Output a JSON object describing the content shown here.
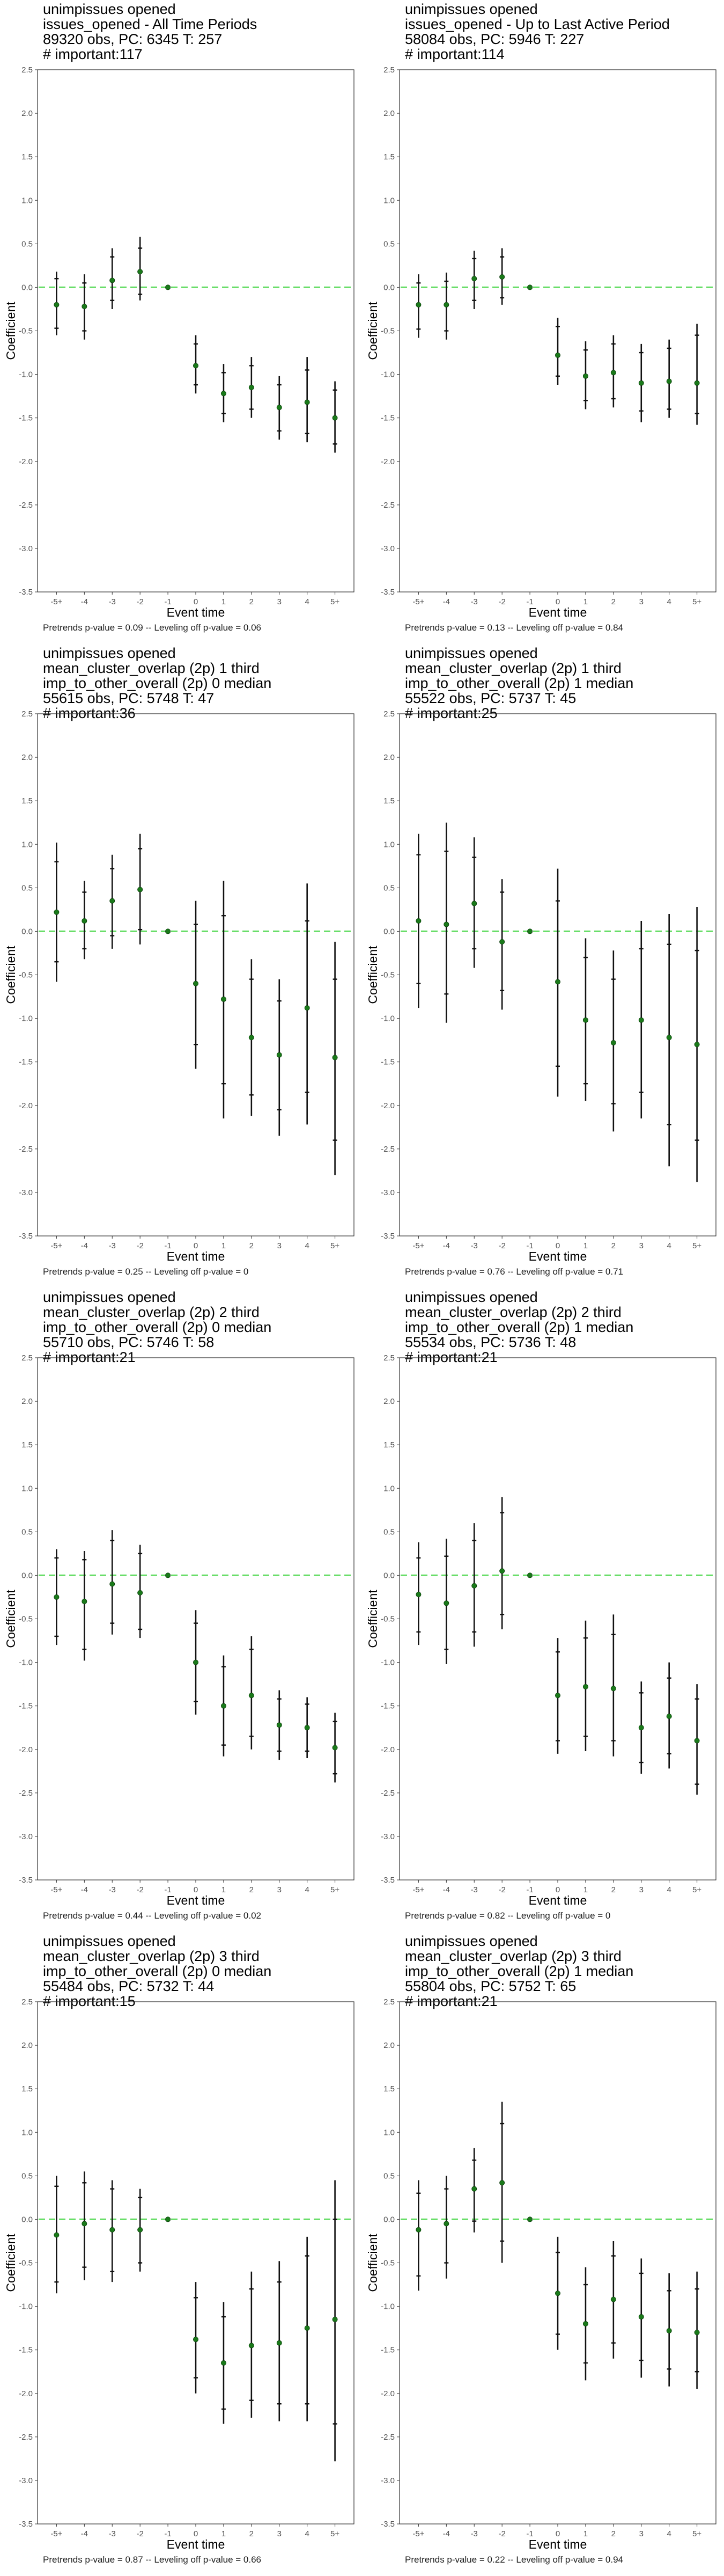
{
  "x_ticks": [
    "-5+",
    "-4",
    "-3",
    "-2",
    "-1",
    "0",
    "1",
    "2",
    "3",
    "4",
    "5+"
  ],
  "y_ticks": [
    "2.5",
    "2.0",
    "1.5",
    "1.0",
    "0.5",
    "0.0",
    "-0.5",
    "-1.0",
    "-1.5",
    "-2.0",
    "-2.5",
    "-3.0",
    "-3.5"
  ],
  "x_label": "Event time",
  "y_label": "Coefficient",
  "colors": {
    "point": "#1a7a1a",
    "reference_line": "#66dd66",
    "error_bar": "#111111",
    "panel_border": "#333333"
  },
  "panels": [
    {
      "titles": [
        " unimpissues opened",
        "issues_opened - All Time Periods",
        "89320 obs, PC: 6345 T: 257",
        "# important:117"
      ],
      "footnote": "Pretrends p-value = 0.09 -- Leveling off p-value = 0.06",
      "chart_data": {
        "type": "scatter",
        "x": [
          "-5+",
          "-4",
          "-3",
          "-2",
          "-1",
          "0",
          "1",
          "2",
          "3",
          "4",
          "5+"
        ],
        "y": [
          -0.2,
          -0.22,
          0.08,
          0.18,
          0.0,
          -0.9,
          -1.22,
          -1.15,
          -1.38,
          -1.32,
          -1.5
        ],
        "ci95": [
          [
            -0.55,
            0.18
          ],
          [
            -0.6,
            0.15
          ],
          [
            -0.25,
            0.45
          ],
          [
            -0.15,
            0.58
          ],
          null,
          [
            -1.22,
            -0.55
          ],
          [
            -1.55,
            -0.88
          ],
          [
            -1.5,
            -0.8
          ],
          [
            -1.75,
            -1.02
          ],
          [
            -1.78,
            -0.8
          ],
          [
            -1.9,
            -1.08
          ]
        ],
        "ci90": [
          [
            -0.47,
            0.1
          ],
          [
            -0.5,
            0.05
          ],
          [
            -0.15,
            0.35
          ],
          [
            -0.08,
            0.45
          ],
          null,
          [
            -1.12,
            -0.65
          ],
          [
            -1.45,
            -0.98
          ],
          [
            -1.4,
            -0.9
          ],
          [
            -1.65,
            -1.12
          ],
          [
            -1.68,
            -0.95
          ],
          [
            -1.8,
            -1.18
          ]
        ],
        "ylim": [
          -3.5,
          2.5
        ],
        "reference_y": 0
      }
    },
    {
      "titles": [
        " unimpissues opened",
        "issues_opened - Up to Last Active Period",
        "58084 obs, PC: 5946 T: 227",
        "# important:114"
      ],
      "footnote": "Pretrends p-value = 0.13 -- Leveling off p-value = 0.84",
      "chart_data": {
        "type": "scatter",
        "x": [
          "-5+",
          "-4",
          "-3",
          "-2",
          "-1",
          "0",
          "1",
          "2",
          "3",
          "4",
          "5+"
        ],
        "y": [
          -0.2,
          -0.2,
          0.1,
          0.12,
          0.0,
          -0.78,
          -1.02,
          -0.98,
          -1.1,
          -1.08,
          -1.1
        ],
        "ci95": [
          [
            -0.58,
            0.15
          ],
          [
            -0.6,
            0.17
          ],
          [
            -0.25,
            0.42
          ],
          [
            -0.2,
            0.45
          ],
          null,
          [
            -1.12,
            -0.35
          ],
          [
            -1.4,
            -0.62
          ],
          [
            -1.38,
            -0.55
          ],
          [
            -1.55,
            -0.65
          ],
          [
            -1.5,
            -0.6
          ],
          [
            -1.58,
            -0.42
          ]
        ],
        "ci90": [
          [
            -0.48,
            0.05
          ],
          [
            -0.5,
            0.07
          ],
          [
            -0.15,
            0.33
          ],
          [
            -0.12,
            0.35
          ],
          null,
          [
            -1.02,
            -0.45
          ],
          [
            -1.3,
            -0.72
          ],
          [
            -1.28,
            -0.65
          ],
          [
            -1.42,
            -0.75
          ],
          [
            -1.4,
            -0.7
          ],
          [
            -1.45,
            -0.55
          ]
        ],
        "ylim": [
          -3.5,
          2.5
        ],
        "reference_y": 0
      }
    },
    {
      "titles": [
        " unimpissues opened",
        "mean_cluster_overlap (2p) 1 third",
        "imp_to_other_overall (2p) 0 median",
        "55615 obs, PC: 5748 T: 47",
        "# important:36"
      ],
      "footnote": "Pretrends p-value = 0.25 -- Leveling off p-value = 0",
      "chart_data": {
        "type": "scatter",
        "x": [
          "-5+",
          "-4",
          "-3",
          "-2",
          "-1",
          "0",
          "1",
          "2",
          "3",
          "4",
          "5+"
        ],
        "y": [
          0.22,
          0.12,
          0.35,
          0.48,
          0.0,
          -0.6,
          -0.78,
          -1.22,
          -1.42,
          -0.88,
          -1.45
        ],
        "ci95": [
          [
            -0.58,
            1.02
          ],
          [
            -0.32,
            0.58
          ],
          [
            -0.2,
            0.88
          ],
          [
            -0.15,
            1.12
          ],
          null,
          [
            -1.58,
            0.35
          ],
          [
            -2.15,
            0.58
          ],
          [
            -2.12,
            -0.32
          ],
          [
            -2.35,
            -0.55
          ],
          [
            -2.22,
            0.55
          ],
          [
            -2.8,
            -0.12
          ]
        ],
        "ci90": [
          [
            -0.35,
            0.8
          ],
          [
            -0.2,
            0.45
          ],
          [
            -0.05,
            0.72
          ],
          [
            0.02,
            0.95
          ],
          null,
          [
            -1.3,
            0.08
          ],
          [
            -1.75,
            0.18
          ],
          [
            -1.88,
            -0.55
          ],
          [
            -2.05,
            -0.8
          ],
          [
            -1.85,
            0.12
          ],
          [
            -2.4,
            -0.55
          ]
        ],
        "ylim": [
          -3.5,
          2.5
        ],
        "reference_y": 0
      }
    },
    {
      "titles": [
        " unimpissues opened",
        "mean_cluster_overlap (2p) 1 third",
        "imp_to_other_overall (2p) 1 median",
        "55522 obs, PC: 5737 T: 45",
        "# important:25"
      ],
      "footnote": "Pretrends p-value = 0.76 -- Leveling off p-value = 0.71",
      "chart_data": {
        "type": "scatter",
        "x": [
          "-5+",
          "-4",
          "-3",
          "-2",
          "-1",
          "0",
          "1",
          "2",
          "3",
          "4",
          "5+"
        ],
        "y": [
          0.12,
          0.08,
          0.32,
          -0.12,
          0.0,
          -0.58,
          -1.02,
          -1.28,
          -1.02,
          -1.22,
          -1.3
        ],
        "ci95": [
          [
            -0.88,
            1.12
          ],
          [
            -1.05,
            1.25
          ],
          [
            -0.42,
            1.08
          ],
          [
            -0.9,
            0.6
          ],
          null,
          [
            -1.9,
            0.72
          ],
          [
            -1.95,
            -0.08
          ],
          [
            -2.3,
            -0.22
          ],
          [
            -2.15,
            0.12
          ],
          [
            -2.7,
            0.2
          ],
          [
            -2.88,
            0.28
          ]
        ],
        "ci90": [
          [
            -0.6,
            0.88
          ],
          [
            -0.72,
            0.92
          ],
          [
            -0.2,
            0.85
          ],
          [
            -0.68,
            0.45
          ],
          null,
          [
            -1.55,
            0.35
          ],
          [
            -1.75,
            -0.3
          ],
          [
            -1.98,
            -0.55
          ],
          [
            -1.85,
            -0.2
          ],
          [
            -2.22,
            -0.15
          ],
          [
            -2.4,
            -0.22
          ]
        ],
        "ylim": [
          -3.5,
          2.5
        ],
        "reference_y": 0
      }
    },
    {
      "titles": [
        " unimpissues opened",
        "mean_cluster_overlap (2p) 2 third",
        "imp_to_other_overall (2p) 0 median",
        "55710 obs, PC: 5746 T: 58",
        "# important:21"
      ],
      "footnote": "Pretrends p-value = 0.44 -- Leveling off p-value = 0.02",
      "chart_data": {
        "type": "scatter",
        "x": [
          "-5+",
          "-4",
          "-3",
          "-2",
          "-1",
          "0",
          "1",
          "2",
          "3",
          "4",
          "5+"
        ],
        "y": [
          -0.25,
          -0.3,
          -0.1,
          -0.2,
          0.0,
          -1.0,
          -1.5,
          -1.38,
          -1.72,
          -1.75,
          -1.98
        ],
        "ci95": [
          [
            -0.8,
            0.3
          ],
          [
            -0.98,
            0.28
          ],
          [
            -0.68,
            0.52
          ],
          [
            -0.72,
            0.35
          ],
          null,
          [
            -1.6,
            -0.4
          ],
          [
            -2.08,
            -0.92
          ],
          [
            -2.0,
            -0.7
          ],
          [
            -2.12,
            -1.32
          ],
          [
            -2.1,
            -1.4
          ],
          [
            -2.38,
            -1.58
          ]
        ],
        "ci90": [
          [
            -0.7,
            0.2
          ],
          [
            -0.85,
            0.18
          ],
          [
            -0.55,
            0.4
          ],
          [
            -0.62,
            0.25
          ],
          null,
          [
            -1.45,
            -0.55
          ],
          [
            -1.95,
            -1.05
          ],
          [
            -1.85,
            -0.85
          ],
          [
            -2.02,
            -1.42
          ],
          [
            -2.02,
            -1.48
          ],
          [
            -2.28,
            -1.68
          ]
        ],
        "ylim": [
          -3.5,
          2.5
        ],
        "reference_y": 0
      }
    },
    {
      "titles": [
        " unimpissues opened",
        "mean_cluster_overlap (2p) 2 third",
        "imp_to_other_overall (2p) 1 median",
        "55534 obs, PC: 5736 T: 48",
        "# important:21"
      ],
      "footnote": "Pretrends p-value = 0.82 -- Leveling off p-value = 0",
      "chart_data": {
        "type": "scatter",
        "x": [
          "-5+",
          "-4",
          "-3",
          "-2",
          "-1",
          "0",
          "1",
          "2",
          "3",
          "4",
          "5+"
        ],
        "y": [
          -0.22,
          -0.32,
          -0.12,
          0.05,
          0.0,
          -1.38,
          -1.28,
          -1.3,
          -1.75,
          -1.62,
          -1.9
        ],
        "ci95": [
          [
            -0.8,
            0.38
          ],
          [
            -1.02,
            0.42
          ],
          [
            -0.82,
            0.6
          ],
          [
            -0.62,
            0.9
          ],
          null,
          [
            -2.05,
            -0.72
          ],
          [
            -2.02,
            -0.52
          ],
          [
            -2.08,
            -0.45
          ],
          [
            -2.28,
            -1.22
          ],
          [
            -2.22,
            -1.0
          ],
          [
            -2.52,
            -1.25
          ]
        ],
        "ci90": [
          [
            -0.65,
            0.2
          ],
          [
            -0.85,
            0.22
          ],
          [
            -0.65,
            0.4
          ],
          [
            -0.45,
            0.72
          ],
          null,
          [
            -1.9,
            -0.88
          ],
          [
            -1.85,
            -0.72
          ],
          [
            -1.9,
            -0.68
          ],
          [
            -2.15,
            -1.35
          ],
          [
            -2.05,
            -1.18
          ],
          [
            -2.4,
            -1.42
          ]
        ],
        "ylim": [
          -3.5,
          2.5
        ],
        "reference_y": 0
      }
    },
    {
      "titles": [
        " unimpissues opened",
        "mean_cluster_overlap (2p) 3 third",
        "imp_to_other_overall (2p) 0 median",
        "55484 obs, PC: 5732 T: 44",
        "# important:15"
      ],
      "footnote": "Pretrends p-value = 0.87 -- Leveling off p-value = 0.66",
      "chart_data": {
        "type": "scatter",
        "x": [
          "-5+",
          "-4",
          "-3",
          "-2",
          "-1",
          "0",
          "1",
          "2",
          "3",
          "4",
          "5+"
        ],
        "y": [
          -0.18,
          -0.05,
          -0.12,
          -0.12,
          0.0,
          -1.38,
          -1.65,
          -1.45,
          -1.42,
          -1.25,
          -1.15
        ],
        "ci95": [
          [
            -0.85,
            0.5
          ],
          [
            -0.7,
            0.55
          ],
          [
            -0.72,
            0.45
          ],
          [
            -0.6,
            0.35
          ],
          null,
          [
            -2.0,
            -0.72
          ],
          [
            -2.35,
            -0.95
          ],
          [
            -2.28,
            -0.6
          ],
          [
            -2.32,
            -0.48
          ],
          [
            -2.32,
            -0.2
          ],
          [
            -2.78,
            0.45
          ]
        ],
        "ci90": [
          [
            -0.72,
            0.38
          ],
          [
            -0.55,
            0.42
          ],
          [
            -0.6,
            0.35
          ],
          [
            -0.5,
            0.25
          ],
          null,
          [
            -1.82,
            -0.9
          ],
          [
            -2.18,
            -1.12
          ],
          [
            -2.08,
            -0.8
          ],
          [
            -2.12,
            -0.72
          ],
          [
            -2.12,
            -0.42
          ],
          [
            -2.35,
            0.0
          ]
        ],
        "ylim": [
          -3.5,
          2.5
        ],
        "reference_y": 0
      }
    },
    {
      "titles": [
        " unimpissues opened",
        "mean_cluster_overlap (2p) 3 third",
        "imp_to_other_overall (2p) 1 median",
        "55804 obs, PC: 5752 T: 65",
        "# important:21"
      ],
      "footnote": "Pretrends p-value = 0.22 -- Leveling off p-value = 0.94",
      "chart_data": {
        "type": "scatter",
        "x": [
          "-5+",
          "-4",
          "-3",
          "-2",
          "-1",
          "0",
          "1",
          "2",
          "3",
          "4",
          "5+"
        ],
        "y": [
          -0.12,
          -0.05,
          0.35,
          0.42,
          0.0,
          -0.85,
          -1.2,
          -0.92,
          -1.12,
          -1.28,
          -1.3
        ],
        "ci95": [
          [
            -0.82,
            0.45
          ],
          [
            -0.68,
            0.5
          ],
          [
            -0.15,
            0.82
          ],
          [
            -0.5,
            1.35
          ],
          null,
          [
            -1.5,
            -0.2
          ],
          [
            -1.85,
            -0.55
          ],
          [
            -1.6,
            -0.25
          ],
          [
            -1.82,
            -0.45
          ],
          [
            -1.92,
            -0.62
          ],
          [
            -1.95,
            -0.6
          ]
        ],
        "ci90": [
          [
            -0.65,
            0.3
          ],
          [
            -0.5,
            0.35
          ],
          [
            -0.02,
            0.68
          ],
          [
            -0.25,
            1.1
          ],
          null,
          [
            -1.32,
            -0.38
          ],
          [
            -1.65,
            -0.75
          ],
          [
            -1.42,
            -0.42
          ],
          [
            -1.62,
            -0.62
          ],
          [
            -1.72,
            -0.82
          ],
          [
            -1.75,
            -0.8
          ]
        ],
        "ylim": [
          -3.5,
          2.5
        ],
        "reference_y": 0
      }
    }
  ]
}
